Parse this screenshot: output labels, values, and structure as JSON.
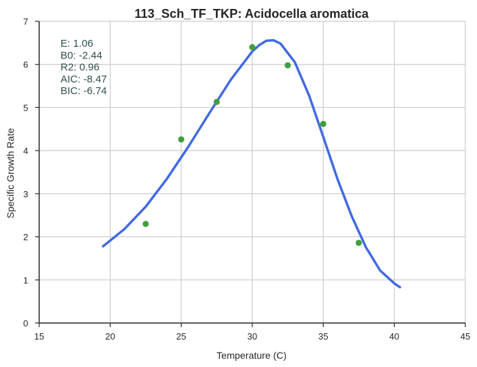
{
  "chart_data": {
    "type": "scatter",
    "title": "113_Sch_TF_TKP: Acidocella aromatica",
    "xlabel": "Temperature (C)",
    "ylabel": "Specific Growth Rate",
    "xlim": [
      15,
      45
    ],
    "ylim": [
      0,
      7
    ],
    "xticks": [
      15,
      20,
      25,
      30,
      35,
      40,
      45
    ],
    "yticks": [
      0,
      1,
      2,
      3,
      4,
      5,
      6,
      7
    ],
    "grid": true,
    "stats": [
      "E:  1.06",
      "B0:  -2.44",
      "R2:  0.96",
      "AIC: -8.47",
      "BIC: -6.74"
    ],
    "series": [
      {
        "kind": "points",
        "color": "#3f9f3f",
        "x": [
          22.5,
          25.0,
          27.5,
          30.0,
          32.5,
          35.0,
          37.5
        ],
        "y": [
          2.3,
          4.26,
          5.13,
          6.4,
          5.98,
          4.62,
          1.86
        ]
      },
      {
        "kind": "line",
        "color": "#4169e1",
        "x": [
          19.5,
          21.0,
          22.5,
          24.0,
          25.5,
          27.0,
          28.5,
          30.0,
          30.5,
          31.0,
          31.5,
          32.0,
          33.0,
          34.0,
          35.0,
          36.0,
          37.0,
          38.0,
          39.0,
          40.0,
          40.4
        ],
        "y": [
          1.78,
          2.18,
          2.7,
          3.35,
          4.09,
          4.88,
          5.65,
          6.3,
          6.45,
          6.55,
          6.56,
          6.48,
          6.05,
          5.28,
          4.32,
          3.34,
          2.48,
          1.76,
          1.22,
          0.92,
          0.83
        ]
      }
    ]
  }
}
